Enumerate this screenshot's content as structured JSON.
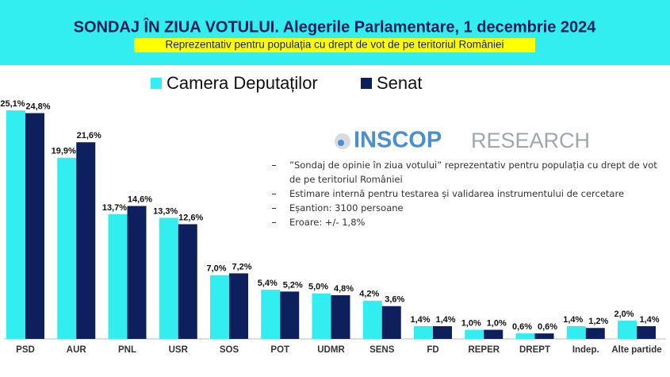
{
  "chart_data": {
    "type": "bar",
    "title": "SONDAJ ÎN ZIUA VOTULUI. Alegerile Parlamentare, 1 decembrie 2024",
    "subtitle": "Reprezentativ pentru populația cu drept de vot de pe teritoriul României",
    "categories": [
      "PSD",
      "AUR",
      "PNL",
      "USR",
      "SOS",
      "POT",
      "UDMR",
      "SENS",
      "FD",
      "REPER",
      "DREPT",
      "Indep.",
      "Alte partide"
    ],
    "series": [
      {
        "name": "Camera Deputaților",
        "color": "#33eef0",
        "values": [
          25.1,
          19.9,
          13.7,
          13.3,
          7.0,
          5.4,
          5.0,
          4.2,
          1.4,
          1.0,
          0.6,
          1.4,
          2.0
        ],
        "value_labels": [
          "25,1%",
          "19,9%",
          "13,7%",
          "13,3%",
          "7,0%",
          "5,4%",
          "5,0%",
          "4,2%",
          "1,4%",
          "1,0%",
          "0,6%",
          "1,4%",
          "2,0%"
        ]
      },
      {
        "name": "Senat",
        "color": "#0d1f5c",
        "values": [
          24.8,
          21.6,
          14.6,
          12.6,
          7.2,
          5.2,
          4.8,
          3.6,
          1.4,
          1.0,
          0.6,
          1.2,
          1.4
        ],
        "value_labels": [
          "24,8%",
          "21,6%",
          "14,6%",
          "12,6%",
          "7,2%",
          "5,2%",
          "4,8%",
          "3,6%",
          "1,4%",
          "1,0%",
          "0,6%",
          "1,2%",
          "1,4%"
        ]
      }
    ],
    "logo": {
      "bold": "INSCOP",
      "light": "RESEARCH"
    },
    "notes": [
      "”Sondaj de opinie în ziua votului” reprezentativ pentru populația cu drept de vot de pe teritoriul României",
      "Estimare internă pentru testarea și validarea instrumentului de cercetare",
      "Eșantion: 3100 persoane",
      "Eroare: +/- 1,8%"
    ]
  }
}
